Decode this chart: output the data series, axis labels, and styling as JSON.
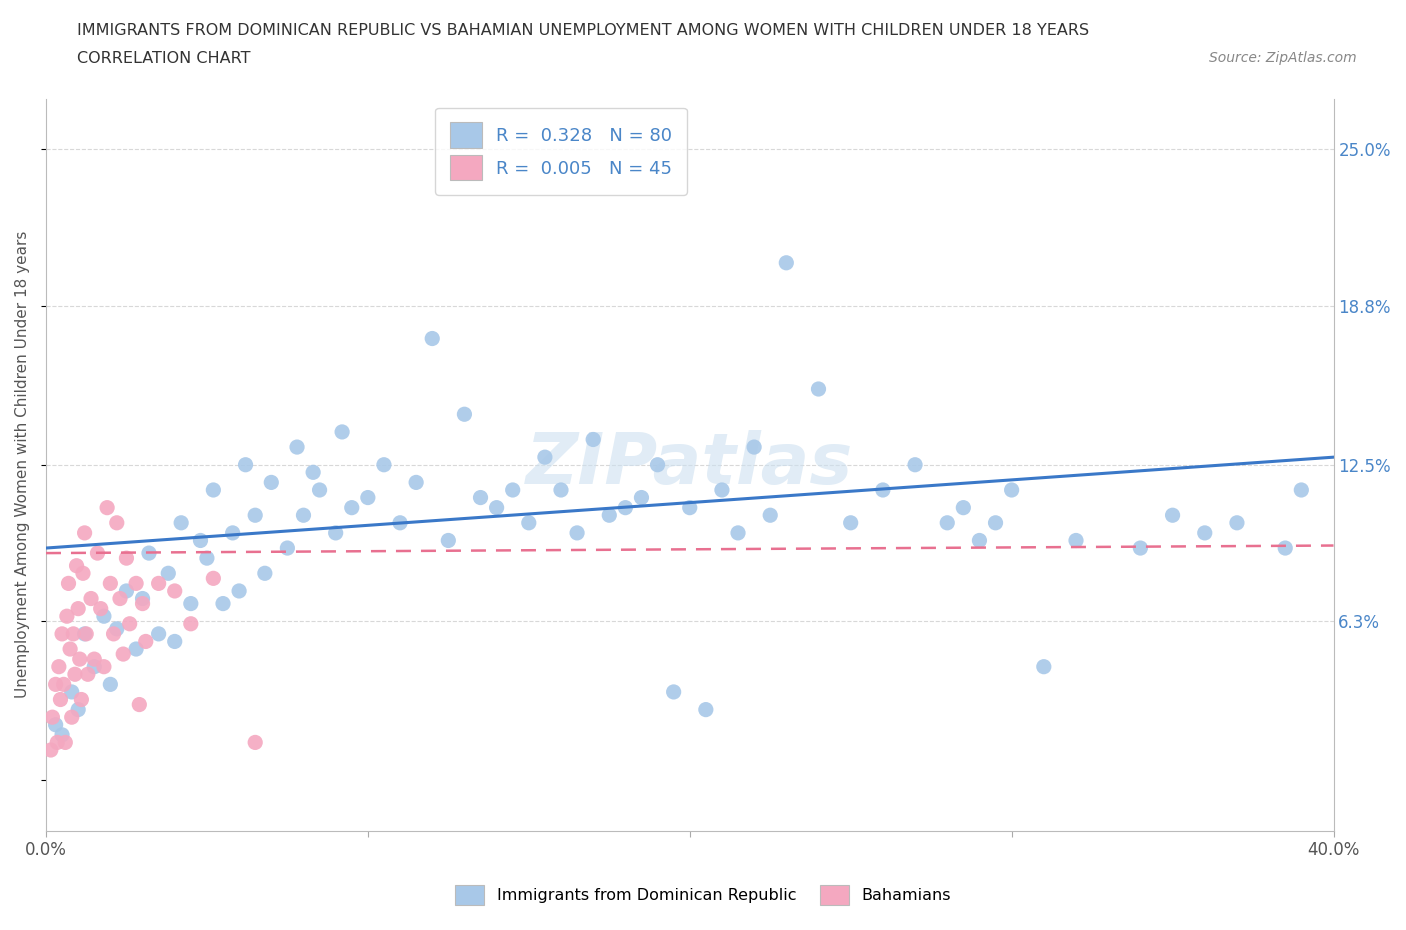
{
  "title_line1": "IMMIGRANTS FROM DOMINICAN REPUBLIC VS BAHAMIAN UNEMPLOYMENT AMONG WOMEN WITH CHILDREN UNDER 18 YEARS",
  "title_line2": "CORRELATION CHART",
  "source": "Source: ZipAtlas.com",
  "ylabel": "Unemployment Among Women with Children Under 18 years",
  "xlim": [
    0,
    40
  ],
  "ylim": [
    -2,
    27
  ],
  "ytick_values": [
    0,
    6.3,
    12.5,
    18.8,
    25.0
  ],
  "ytick_labels_right": [
    "",
    "6.3%",
    "12.5%",
    "18.8%",
    "25.0%"
  ],
  "xtick_values": [
    0,
    10,
    20,
    30,
    40
  ],
  "xtick_labels": [
    "0.0%",
    "",
    "",
    "",
    "40.0%"
  ],
  "watermark": "ZIPatlas",
  "legend_entry1": "R =  0.328   N = 80",
  "legend_entry2": "R =  0.005   N = 45",
  "legend_label1": "Immigrants from Dominican Republic",
  "legend_label2": "Bahamians",
  "color_blue": "#a8c8e8",
  "color_pink": "#f4a8c0",
  "trend_blue": "#3a78c8",
  "trend_pink": "#e87090",
  "grid_color": "#d8d8d8",
  "blue_scatter": [
    [
      0.3,
      2.2
    ],
    [
      0.5,
      1.8
    ],
    [
      0.8,
      3.5
    ],
    [
      1.0,
      2.8
    ],
    [
      1.2,
      5.8
    ],
    [
      1.5,
      4.5
    ],
    [
      1.8,
      6.5
    ],
    [
      2.0,
      3.8
    ],
    [
      2.2,
      6.0
    ],
    [
      2.5,
      7.5
    ],
    [
      2.8,
      5.2
    ],
    [
      3.0,
      7.2
    ],
    [
      3.2,
      9.0
    ],
    [
      3.5,
      5.8
    ],
    [
      3.8,
      8.2
    ],
    [
      4.0,
      5.5
    ],
    [
      4.2,
      10.2
    ],
    [
      4.5,
      7.0
    ],
    [
      4.8,
      9.5
    ],
    [
      5.0,
      8.8
    ],
    [
      5.2,
      11.5
    ],
    [
      5.5,
      7.0
    ],
    [
      5.8,
      9.8
    ],
    [
      6.0,
      7.5
    ],
    [
      6.2,
      12.5
    ],
    [
      6.5,
      10.5
    ],
    [
      6.8,
      8.2
    ],
    [
      7.0,
      11.8
    ],
    [
      7.5,
      9.2
    ],
    [
      7.8,
      13.2
    ],
    [
      8.0,
      10.5
    ],
    [
      8.3,
      12.2
    ],
    [
      8.5,
      11.5
    ],
    [
      9.0,
      9.8
    ],
    [
      9.2,
      13.8
    ],
    [
      9.5,
      10.8
    ],
    [
      10.0,
      11.2
    ],
    [
      10.5,
      12.5
    ],
    [
      11.0,
      10.2
    ],
    [
      11.5,
      11.8
    ],
    [
      12.0,
      17.5
    ],
    [
      12.5,
      9.5
    ],
    [
      13.0,
      14.5
    ],
    [
      13.5,
      11.2
    ],
    [
      14.0,
      10.8
    ],
    [
      14.5,
      11.5
    ],
    [
      15.0,
      10.2
    ],
    [
      15.5,
      12.8
    ],
    [
      16.0,
      11.5
    ],
    [
      16.5,
      9.8
    ],
    [
      17.0,
      13.5
    ],
    [
      17.5,
      10.5
    ],
    [
      18.0,
      10.8
    ],
    [
      18.5,
      11.2
    ],
    [
      19.0,
      12.5
    ],
    [
      19.5,
      3.5
    ],
    [
      20.0,
      10.8
    ],
    [
      20.5,
      2.8
    ],
    [
      21.0,
      11.5
    ],
    [
      21.5,
      9.8
    ],
    [
      22.0,
      13.2
    ],
    [
      22.5,
      10.5
    ],
    [
      23.0,
      20.5
    ],
    [
      24.0,
      15.5
    ],
    [
      25.0,
      10.2
    ],
    [
      26.0,
      11.5
    ],
    [
      27.0,
      12.5
    ],
    [
      28.0,
      10.2
    ],
    [
      28.5,
      10.8
    ],
    [
      29.0,
      9.5
    ],
    [
      29.5,
      10.2
    ],
    [
      30.0,
      11.5
    ],
    [
      31.0,
      4.5
    ],
    [
      32.0,
      9.5
    ],
    [
      34.0,
      9.2
    ],
    [
      35.0,
      10.5
    ],
    [
      36.0,
      9.8
    ],
    [
      37.0,
      10.2
    ],
    [
      38.5,
      9.2
    ],
    [
      39.0,
      11.5
    ]
  ],
  "pink_scatter": [
    [
      0.15,
      1.2
    ],
    [
      0.2,
      2.5
    ],
    [
      0.3,
      3.8
    ],
    [
      0.35,
      1.5
    ],
    [
      0.4,
      4.5
    ],
    [
      0.45,
      3.2
    ],
    [
      0.5,
      5.8
    ],
    [
      0.55,
      3.8
    ],
    [
      0.6,
      1.5
    ],
    [
      0.65,
      6.5
    ],
    [
      0.7,
      7.8
    ],
    [
      0.75,
      5.2
    ],
    [
      0.8,
      2.5
    ],
    [
      0.85,
      5.8
    ],
    [
      0.9,
      4.2
    ],
    [
      0.95,
      8.5
    ],
    [
      1.0,
      6.8
    ],
    [
      1.05,
      4.8
    ],
    [
      1.1,
      3.2
    ],
    [
      1.15,
      8.2
    ],
    [
      1.2,
      9.8
    ],
    [
      1.25,
      5.8
    ],
    [
      1.3,
      4.2
    ],
    [
      1.4,
      7.2
    ],
    [
      1.5,
      4.8
    ],
    [
      1.6,
      9.0
    ],
    [
      1.7,
      6.8
    ],
    [
      1.8,
      4.5
    ],
    [
      1.9,
      10.8
    ],
    [
      2.0,
      7.8
    ],
    [
      2.1,
      5.8
    ],
    [
      2.2,
      10.2
    ],
    [
      2.3,
      7.2
    ],
    [
      2.4,
      5.0
    ],
    [
      2.5,
      8.8
    ],
    [
      2.6,
      6.2
    ],
    [
      2.8,
      7.8
    ],
    [
      2.9,
      3.0
    ],
    [
      3.0,
      7.0
    ],
    [
      3.1,
      5.5
    ],
    [
      3.5,
      7.8
    ],
    [
      4.0,
      7.5
    ],
    [
      4.5,
      6.2
    ],
    [
      5.2,
      8.0
    ],
    [
      6.5,
      1.5
    ]
  ],
  "blue_trend_x": [
    0,
    40
  ],
  "blue_trend_y": [
    9.2,
    12.8
  ],
  "pink_trend_x": [
    0,
    40
  ],
  "pink_trend_y": [
    9.0,
    9.3
  ]
}
